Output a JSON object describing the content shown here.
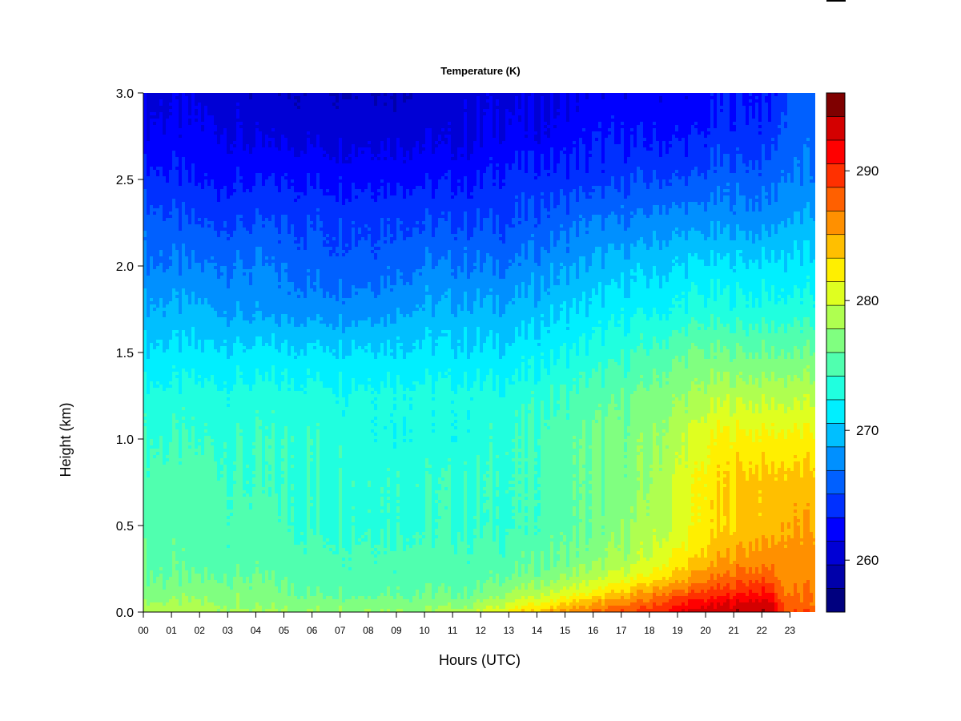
{
  "chart_data": {
    "type": "heatmap",
    "title": "Temperature (K)",
    "xlabel": "Hours (UTC)",
    "ylabel": "Height (km)",
    "x_ticks": [
      "00",
      "01",
      "02",
      "03",
      "04",
      "05",
      "06",
      "07",
      "08",
      "09",
      "10",
      "11",
      "12",
      "13",
      "14",
      "15",
      "16",
      "17",
      "18",
      "19",
      "20",
      "21",
      "22",
      "23"
    ],
    "y_ticks": [
      "0.0",
      "0.5",
      "1.0",
      "1.5",
      "2.0",
      "2.5",
      "3.0"
    ],
    "xlim": [
      0,
      23.9
    ],
    "ylim": [
      0,
      3.0
    ],
    "colorbar": {
      "ticks": [
        "260",
        "270",
        "280",
        "290"
      ],
      "range": [
        256,
        296
      ],
      "levels": 20,
      "colors": [
        "#00007F",
        "#0000AA",
        "#0000D5",
        "#0000FF",
        "#0030FF",
        "#0060FF",
        "#0090FF",
        "#00BFFF",
        "#00EFFF",
        "#20FFDF",
        "#50FFAF",
        "#80FF80",
        "#AFFF50",
        "#DFFF20",
        "#FFEF00",
        "#FFBF00",
        "#FF9000",
        "#FF6000",
        "#FF3000",
        "#FF0000",
        "#D40000",
        "#7F0000"
      ]
    },
    "height_km": [
      0.0,
      0.05,
      0.1,
      0.2,
      0.3,
      0.5,
      0.75,
      1.0,
      1.25,
      1.5,
      1.75,
      2.0,
      2.25,
      2.5,
      2.75,
      3.0
    ],
    "time_utc_h": [
      0,
      2,
      4,
      6,
      8,
      10,
      11.5,
      13,
      14.5,
      16,
      17.5,
      18.5,
      19.5,
      20.5,
      21.5,
      22.3,
      22.8,
      23.9
    ],
    "temperature_K": [
      [
        279,
        278,
        277,
        276,
        276,
        275,
        275,
        274,
        273,
        271,
        269,
        267,
        266,
        264,
        262,
        261
      ],
      [
        279,
        278,
        277,
        276,
        275,
        275,
        275,
        274,
        273,
        271,
        269,
        267,
        265,
        263,
        262,
        261
      ],
      [
        278,
        277,
        277,
        276,
        275,
        275,
        274,
        274,
        273,
        271,
        268,
        267,
        265,
        263,
        261,
        260
      ],
      [
        278,
        277,
        276,
        275,
        275,
        274,
        274,
        274,
        273,
        271,
        268,
        266,
        265,
        263,
        261,
        260
      ],
      [
        278,
        277,
        276,
        275,
        275,
        274,
        274,
        273,
        273,
        271,
        268,
        266,
        265,
        263,
        261,
        260
      ],
      [
        278,
        277,
        276,
        275,
        275,
        274,
        274,
        273,
        273,
        271,
        269,
        267,
        265,
        263,
        261,
        260
      ],
      [
        279,
        277,
        276,
        275,
        275,
        274,
        274,
        273,
        273,
        271,
        269,
        267,
        265,
        263,
        261,
        261
      ],
      [
        282,
        280,
        278,
        276,
        275,
        274,
        274,
        274,
        273,
        271,
        269,
        267,
        265,
        264,
        262,
        261
      ],
      [
        285,
        282,
        280,
        277,
        276,
        275,
        275,
        275,
        274,
        272,
        270,
        268,
        266,
        264,
        262,
        261
      ],
      [
        287,
        285,
        282,
        279,
        277,
        276,
        276,
        276,
        275,
        273,
        271,
        269,
        267,
        264,
        263,
        262
      ],
      [
        289,
        287,
        285,
        281,
        279,
        278,
        277,
        277,
        276,
        274,
        272,
        270,
        267,
        265,
        263,
        262
      ],
      [
        291,
        289,
        287,
        283,
        281,
        279,
        279,
        278,
        277,
        275,
        272,
        270,
        268,
        265,
        263,
        262
      ],
      [
        293,
        291,
        289,
        285,
        283,
        281,
        281,
        280,
        278,
        276,
        273,
        271,
        268,
        265,
        263,
        262
      ],
      [
        294,
        292,
        290,
        287,
        285,
        283,
        283,
        282,
        279,
        276,
        273,
        271,
        268,
        266,
        264,
        263
      ],
      [
        294,
        293,
        291,
        288,
        286,
        284,
        284,
        282,
        279,
        276,
        273,
        271,
        268,
        266,
        264,
        263
      ],
      [
        294,
        293,
        291,
        288,
        286,
        284,
        284,
        282,
        279,
        276,
        273,
        271,
        268,
        266,
        264,
        263
      ],
      [
        289,
        288,
        287,
        286,
        286,
        285,
        284,
        282,
        279,
        276,
        273,
        271,
        269,
        267,
        266,
        265
      ],
      [
        288,
        287,
        287,
        286,
        286,
        285,
        284,
        282,
        279,
        276,
        273,
        271,
        269,
        267,
        266,
        266
      ]
    ]
  }
}
